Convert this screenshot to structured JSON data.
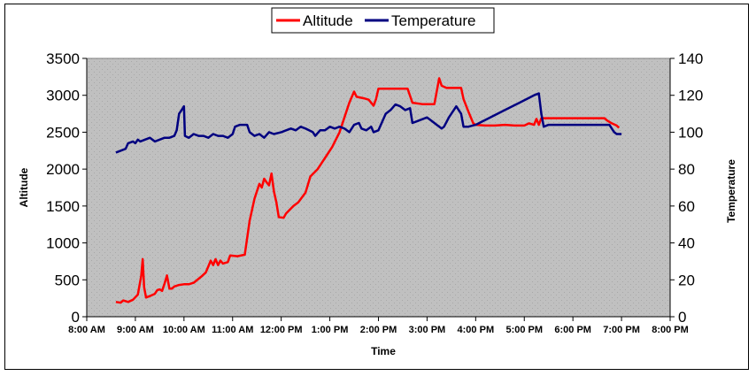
{
  "chart_data": {
    "type": "line",
    "title": "",
    "xlabel": "Time",
    "ylabel_left": "Altitude",
    "ylabel_right": "Temperature",
    "x_ticks": [
      "8:00 AM",
      "9:00 AM",
      "10:00 AM",
      "11:00 AM",
      "12:00 PM",
      "1:00 PM",
      "2:00 PM",
      "3:00 PM",
      "4:00 PM",
      "5:00 PM",
      "6:00 PM",
      "7:00 PM",
      "8:00 PM"
    ],
    "y_left_ticks": [
      "0",
      "500",
      "1000",
      "1500",
      "2000",
      "2500",
      "3000",
      "3500"
    ],
    "y_right_ticks": [
      "0",
      "20",
      "40",
      "60",
      "80",
      "100",
      "120",
      "140"
    ],
    "ylim_left": [
      0,
      3500
    ],
    "ylim_right": [
      0,
      140
    ],
    "xlim_hours": [
      8,
      20
    ],
    "grid": false,
    "plot_background": "#c0c0c0",
    "legend": {
      "placement": "top-center",
      "entries": [
        "Altitude",
        "Temperature"
      ]
    },
    "series": [
      {
        "name": "Altitude",
        "axis": "left",
        "color": "#ff0000",
        "points": [
          [
            8.6,
            200
          ],
          [
            8.7,
            190
          ],
          [
            8.75,
            220
          ],
          [
            8.85,
            200
          ],
          [
            8.95,
            230
          ],
          [
            9.05,
            300
          ],
          [
            9.12,
            550
          ],
          [
            9.15,
            780
          ],
          [
            9.18,
            400
          ],
          [
            9.22,
            260
          ],
          [
            9.3,
            280
          ],
          [
            9.4,
            310
          ],
          [
            9.45,
            360
          ],
          [
            9.5,
            370
          ],
          [
            9.55,
            350
          ],
          [
            9.6,
            450
          ],
          [
            9.65,
            560
          ],
          [
            9.7,
            380
          ],
          [
            9.75,
            380
          ],
          [
            9.8,
            410
          ],
          [
            9.9,
            430
          ],
          [
            10.0,
            440
          ],
          [
            10.1,
            440
          ],
          [
            10.2,
            460
          ],
          [
            10.35,
            540
          ],
          [
            10.45,
            600
          ],
          [
            10.5,
            680
          ],
          [
            10.55,
            760
          ],
          [
            10.6,
            700
          ],
          [
            10.65,
            780
          ],
          [
            10.7,
            700
          ],
          [
            10.75,
            760
          ],
          [
            10.8,
            720
          ],
          [
            10.9,
            740
          ],
          [
            10.95,
            830
          ],
          [
            11.1,
            820
          ],
          [
            11.25,
            840
          ],
          [
            11.35,
            1300
          ],
          [
            11.45,
            1600
          ],
          [
            11.55,
            1800
          ],
          [
            11.6,
            1750
          ],
          [
            11.65,
            1870
          ],
          [
            11.7,
            1820
          ],
          [
            11.75,
            1780
          ],
          [
            11.8,
            1940
          ],
          [
            11.85,
            1700
          ],
          [
            11.9,
            1550
          ],
          [
            11.95,
            1350
          ],
          [
            12.05,
            1340
          ],
          [
            12.1,
            1400
          ],
          [
            12.25,
            1500
          ],
          [
            12.35,
            1550
          ],
          [
            12.5,
            1680
          ],
          [
            12.6,
            1900
          ],
          [
            12.75,
            2000
          ],
          [
            12.85,
            2100
          ],
          [
            12.95,
            2200
          ],
          [
            13.05,
            2300
          ],
          [
            13.2,
            2500
          ],
          [
            13.3,
            2700
          ],
          [
            13.4,
            2900
          ],
          [
            13.5,
            3050
          ],
          [
            13.55,
            2980
          ],
          [
            13.7,
            2960
          ],
          [
            13.8,
            2940
          ],
          [
            13.9,
            2860
          ],
          [
            13.95,
            2950
          ],
          [
            14.0,
            3090
          ],
          [
            14.1,
            3090
          ],
          [
            14.3,
            3090
          ],
          [
            14.5,
            3090
          ],
          [
            14.6,
            3090
          ],
          [
            14.7,
            2900
          ],
          [
            14.9,
            2880
          ],
          [
            15.05,
            2880
          ],
          [
            15.15,
            2880
          ],
          [
            15.25,
            3230
          ],
          [
            15.3,
            3130
          ],
          [
            15.4,
            3100
          ],
          [
            15.5,
            3100
          ],
          [
            15.6,
            3100
          ],
          [
            15.7,
            3100
          ],
          [
            15.75,
            2950
          ],
          [
            15.85,
            2780
          ],
          [
            15.95,
            2620
          ],
          [
            16.0,
            2600
          ],
          [
            16.2,
            2590
          ],
          [
            16.4,
            2590
          ],
          [
            16.6,
            2600
          ],
          [
            16.8,
            2590
          ],
          [
            17.0,
            2590
          ],
          [
            17.1,
            2620
          ],
          [
            17.2,
            2600
          ],
          [
            17.25,
            2680
          ],
          [
            17.3,
            2600
          ],
          [
            17.35,
            2690
          ],
          [
            17.5,
            2690
          ],
          [
            17.7,
            2690
          ],
          [
            17.9,
            2690
          ],
          [
            18.1,
            2690
          ],
          [
            18.35,
            2690
          ],
          [
            18.55,
            2690
          ],
          [
            18.65,
            2690
          ],
          [
            18.7,
            2660
          ],
          [
            18.8,
            2620
          ],
          [
            18.9,
            2590
          ],
          [
            18.95,
            2560
          ]
        ]
      },
      {
        "name": "Temperature",
        "axis": "right",
        "color": "#000080",
        "points": [
          [
            8.6,
            89
          ],
          [
            8.7,
            90
          ],
          [
            8.8,
            91
          ],
          [
            8.85,
            94
          ],
          [
            8.95,
            95
          ],
          [
            9.0,
            94
          ],
          [
            9.05,
            96
          ],
          [
            9.1,
            95
          ],
          [
            9.2,
            96
          ],
          [
            9.3,
            97
          ],
          [
            9.4,
            95
          ],
          [
            9.5,
            96
          ],
          [
            9.6,
            97
          ],
          [
            9.7,
            97
          ],
          [
            9.8,
            98
          ],
          [
            9.85,
            101
          ],
          [
            9.9,
            110
          ],
          [
            9.95,
            112
          ],
          [
            10.0,
            114
          ],
          [
            10.02,
            98
          ],
          [
            10.1,
            97
          ],
          [
            10.2,
            99
          ],
          [
            10.3,
            98
          ],
          [
            10.4,
            98
          ],
          [
            10.5,
            97
          ],
          [
            10.6,
            99
          ],
          [
            10.7,
            98
          ],
          [
            10.8,
            98
          ],
          [
            10.9,
            97
          ],
          [
            11.0,
            99
          ],
          [
            11.05,
            103
          ],
          [
            11.15,
            104
          ],
          [
            11.3,
            104
          ],
          [
            11.35,
            100
          ],
          [
            11.45,
            98
          ],
          [
            11.55,
            99
          ],
          [
            11.65,
            97
          ],
          [
            11.75,
            100
          ],
          [
            11.85,
            99
          ],
          [
            12.0,
            100
          ],
          [
            12.1,
            101
          ],
          [
            12.2,
            102
          ],
          [
            12.3,
            101
          ],
          [
            12.4,
            103
          ],
          [
            12.5,
            102
          ],
          [
            12.65,
            100
          ],
          [
            12.7,
            98
          ],
          [
            12.8,
            101
          ],
          [
            12.9,
            101
          ],
          [
            13.0,
            103
          ],
          [
            13.1,
            102
          ],
          [
            13.2,
            103
          ],
          [
            13.3,
            102
          ],
          [
            13.4,
            100
          ],
          [
            13.5,
            104
          ],
          [
            13.6,
            105
          ],
          [
            13.65,
            102
          ],
          [
            13.75,
            101
          ],
          [
            13.85,
            103
          ],
          [
            13.9,
            100
          ],
          [
            14.0,
            101
          ],
          [
            14.05,
            104
          ],
          [
            14.15,
            110
          ],
          [
            14.25,
            112
          ],
          [
            14.35,
            115
          ],
          [
            14.45,
            114
          ],
          [
            14.55,
            112
          ],
          [
            14.65,
            113
          ],
          [
            14.7,
            105
          ],
          [
            14.8,
            106
          ],
          [
            14.9,
            107
          ],
          [
            15.0,
            108
          ],
          [
            15.1,
            106
          ],
          [
            15.2,
            104
          ],
          [
            15.3,
            102
          ],
          [
            15.35,
            103
          ],
          [
            15.45,
            108
          ],
          [
            15.55,
            112
          ],
          [
            15.6,
            114
          ],
          [
            15.7,
            110
          ],
          [
            15.75,
            103
          ],
          [
            15.85,
            103
          ],
          [
            16.0,
            104
          ],
          [
            16.3,
            108
          ],
          [
            16.6,
            112
          ],
          [
            16.9,
            116
          ],
          [
            17.2,
            120
          ],
          [
            17.3,
            121
          ],
          [
            17.35,
            110
          ],
          [
            17.4,
            103
          ],
          [
            17.5,
            104
          ],
          [
            17.7,
            104
          ],
          [
            18.0,
            104
          ],
          [
            18.3,
            104
          ],
          [
            18.6,
            104
          ],
          [
            18.75,
            104
          ],
          [
            18.8,
            102
          ],
          [
            18.85,
            100
          ],
          [
            18.9,
            99
          ],
          [
            19.0,
            99
          ]
        ]
      }
    ]
  },
  "legend": {
    "items": [
      {
        "label": "Altitude",
        "color": "#ff0000"
      },
      {
        "label": "Temperature",
        "color": "#000080"
      }
    ]
  }
}
